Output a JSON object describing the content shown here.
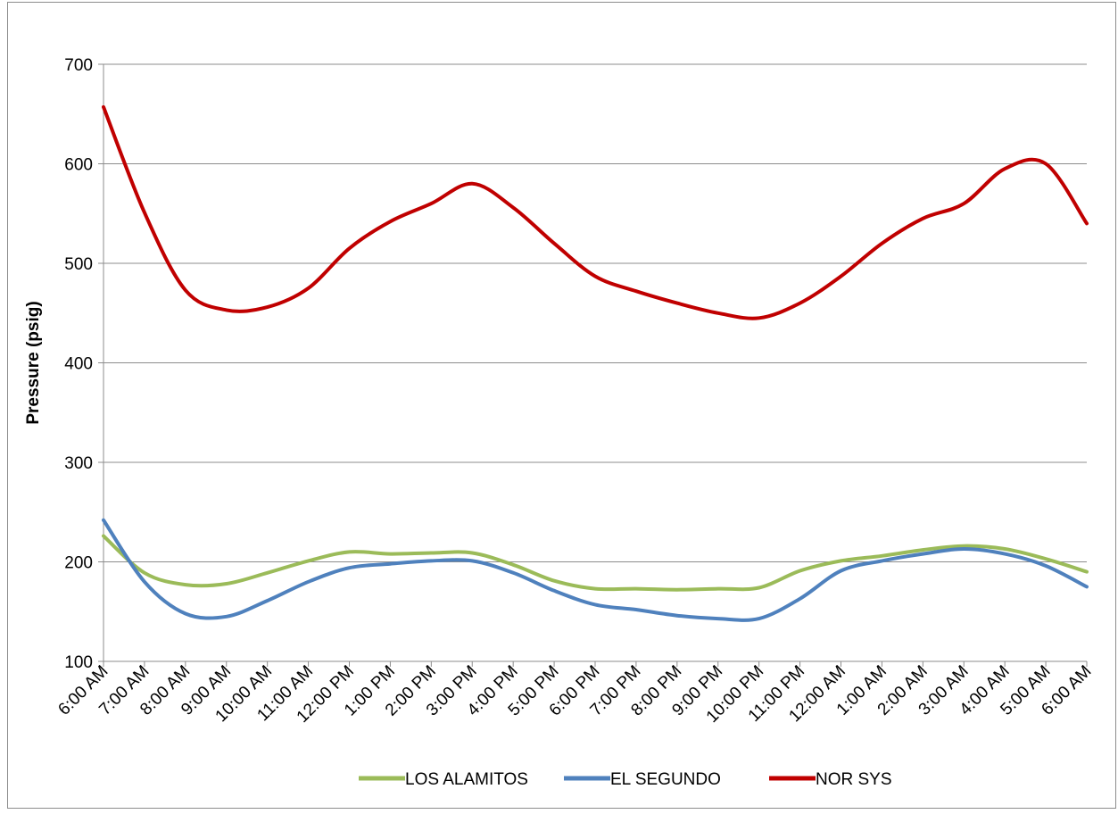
{
  "chart_data": {
    "type": "line",
    "title": "",
    "xlabel": "",
    "ylabel": "Pressure (psig)",
    "ylim": [
      100,
      700
    ],
    "yticks": [
      100,
      200,
      300,
      400,
      500,
      600,
      700
    ],
    "grid": "horizontal",
    "legend_position": "bottom",
    "categories": [
      "6:00 AM",
      "7:00 AM",
      "8:00 AM",
      "9:00 AM",
      "10:00 AM",
      "11:00 AM",
      "12:00 PM",
      "1:00 PM",
      "2:00 PM",
      "3:00 PM",
      "4:00 PM",
      "5:00 PM",
      "6:00 PM",
      "7:00 PM",
      "8:00 PM",
      "9:00 PM",
      "10:00 PM",
      "11:00 PM",
      "12:00 AM",
      "1:00 AM",
      "2:00 AM",
      "3:00 AM",
      "4:00 AM",
      "5:00 AM",
      "6:00 AM"
    ],
    "series": [
      {
        "name": "LOS ALAMITOS",
        "color": "#9bbb59",
        "values": [
          226,
          189,
          177,
          178,
          189,
          201,
          210,
          208,
          209,
          209,
          197,
          181,
          173,
          173,
          172,
          173,
          174,
          191,
          201,
          206,
          212,
          216,
          213,
          203,
          190
        ]
      },
      {
        "name": "EL SEGUNDO",
        "color": "#4f81bd",
        "values": [
          242,
          180,
          148,
          145,
          161,
          180,
          194,
          198,
          201,
          201,
          189,
          171,
          157,
          152,
          146,
          143,
          143,
          163,
          191,
          201,
          208,
          213,
          208,
          196,
          175
        ]
      },
      {
        "name": "NOR SYS",
        "color": "#c00000",
        "values": [
          657,
          551,
          473,
          453,
          456,
          475,
          515,
          542,
          560,
          580,
          556,
          520,
          487,
          472,
          460,
          450,
          445,
          460,
          487,
          520,
          545,
          560,
          595,
          600,
          540
        ]
      }
    ]
  }
}
